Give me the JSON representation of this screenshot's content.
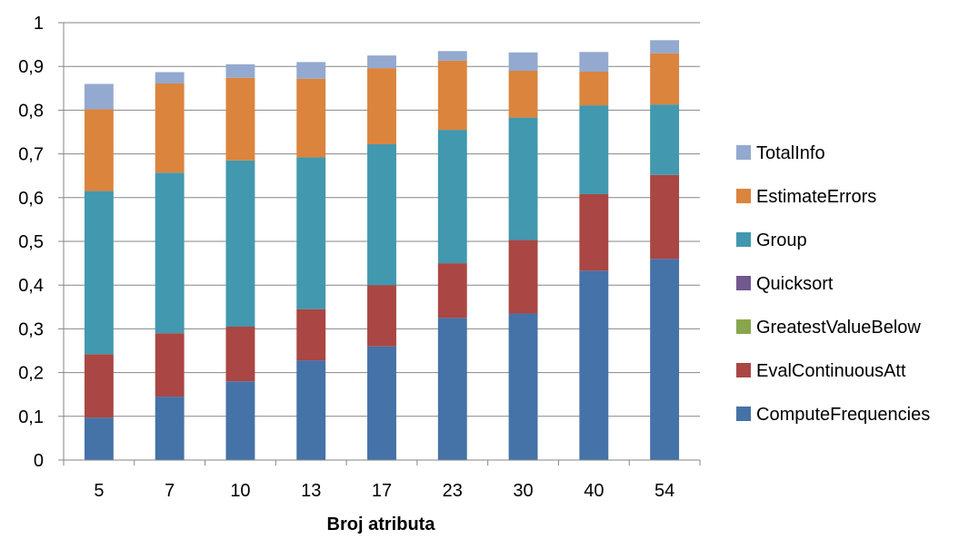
{
  "chart_data": {
    "type": "bar",
    "stacked": true,
    "title": "",
    "xlabel": "Broj atributa",
    "ylabel": "",
    "ylim": [
      0,
      1
    ],
    "yticks": [
      "0",
      "0,1",
      "0,2",
      "0,3",
      "0,4",
      "0,5",
      "0,6",
      "0,7",
      "0,8",
      "0,9",
      "1"
    ],
    "ytick_values": [
      0,
      0.1,
      0.2,
      0.3,
      0.4,
      0.5,
      0.6,
      0.7,
      0.8,
      0.9,
      1.0
    ],
    "grid": "horizontal",
    "legend_position": "right",
    "categories": [
      "5",
      "7",
      "10",
      "13",
      "17",
      "23",
      "30",
      "40",
      "54"
    ],
    "series": [
      {
        "name": "ComputeFrequencies",
        "color": "#4572A7",
        "values": [
          0.097,
          0.145,
          0.18,
          0.228,
          0.26,
          0.325,
          0.335,
          0.433,
          0.46
        ]
      },
      {
        "name": "EvalContinuousAtt",
        "color": "#AA4643",
        "values": [
          0.145,
          0.145,
          0.125,
          0.117,
          0.14,
          0.125,
          0.168,
          0.175,
          0.192
        ]
      },
      {
        "name": "GreatestValueBelow",
        "color": "#89A54E",
        "values": [
          0,
          0,
          0,
          0,
          0,
          0,
          0,
          0,
          0
        ]
      },
      {
        "name": "Quicksort",
        "color": "#71588F",
        "values": [
          0,
          0,
          0,
          0,
          0,
          0,
          0,
          0,
          0
        ]
      },
      {
        "name": "Group",
        "color": "#4198AF",
        "values": [
          0.373,
          0.367,
          0.38,
          0.347,
          0.322,
          0.305,
          0.28,
          0.203,
          0.161
        ]
      },
      {
        "name": "EstimateErrors",
        "color": "#DB843D",
        "values": [
          0.187,
          0.204,
          0.189,
          0.18,
          0.174,
          0.158,
          0.107,
          0.077,
          0.117
        ]
      },
      {
        "name": "TotalInfo",
        "color": "#93A9CF",
        "values": [
          0.058,
          0.026,
          0.031,
          0.038,
          0.029,
          0.022,
          0.042,
          0.045,
          0.03
        ]
      }
    ],
    "legend_order": [
      "TotalInfo",
      "EstimateErrors",
      "Group",
      "Quicksort",
      "GreatestValueBelow",
      "EvalContinuousAtt",
      "ComputeFrequencies"
    ]
  }
}
